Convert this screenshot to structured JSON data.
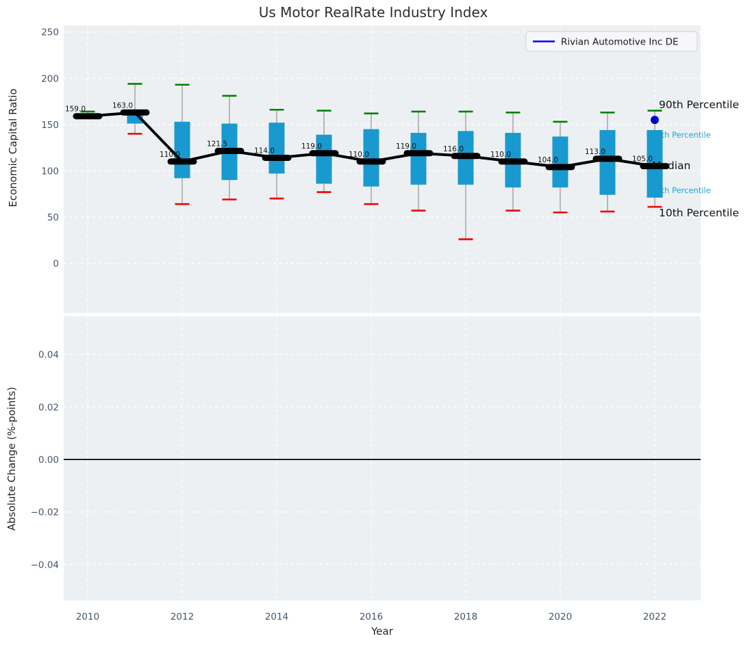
{
  "title": "Us Motor RealRate Industry Index",
  "xlabel": "Year",
  "top_panel": {
    "ylabel": "Economic Capital Ratio",
    "yticks": {
      "values": [
        250,
        200,
        150,
        100,
        50,
        0
      ],
      "labels": [
        "250",
        "200",
        "150",
        "100",
        "50",
        "0"
      ]
    },
    "legend": {
      "label": "Rivian Automotive Inc DE"
    },
    "annotations": {
      "p90": "90th Percentile",
      "p75": "75th Percentile",
      "median": "Median",
      "p25": "25th Percentile",
      "p10": "10th Percentile"
    }
  },
  "bottom_panel": {
    "ylabel": "Absolute Change (%-points)",
    "yticks": {
      "values": [
        0.04,
        0.02,
        0,
        -0.02,
        -0.04
      ],
      "labels": [
        "0.04",
        "0.02",
        "0.00",
        "−0.02",
        "−0.04"
      ]
    },
    "zero_line": 0.0
  },
  "xticks": {
    "values": [
      2010,
      2012,
      2014,
      2016,
      2018,
      2020,
      2022
    ],
    "labels": [
      "2010",
      "2012",
      "2014",
      "2016",
      "2018",
      "2020",
      "2022"
    ]
  },
  "colors": {
    "panel_bg": "#edf0f2",
    "grid": "#ffffff",
    "box": "#1899cf",
    "whisker": "#7f7f7f",
    "cap_high": "#008000",
    "cap_low": "#f20000",
    "median": "#000000",
    "rivian_line": "#0000ff",
    "rivian_dot": "#0000cc",
    "cyan_text": "#1da4d8",
    "zero_line": "#000000"
  },
  "chart_data": [
    {
      "type": "boxplot+line",
      "title": "Us Motor RealRate Industry Index",
      "xlabel": "Year",
      "ylabel": "Economic Capital Ratio",
      "ylim": [
        0,
        250
      ],
      "grid": true,
      "categories": [
        2010,
        2011,
        2012,
        2013,
        2014,
        2015,
        2016,
        2017,
        2018,
        2019,
        2020,
        2021,
        2022
      ],
      "series": [
        {
          "name": "90th percentile",
          "values": [
            164,
            194,
            193,
            181,
            166,
            165,
            162,
            164,
            164,
            163,
            153,
            163,
            165
          ]
        },
        {
          "name": "75th percentile",
          "values": [
            160,
            162,
            153,
            151,
            152,
            139,
            145,
            141,
            143,
            141,
            137,
            144,
            144
          ]
        },
        {
          "name": "median",
          "values": [
            159,
            163,
            110,
            121.5,
            114,
            119,
            110,
            119,
            116,
            110,
            104,
            113,
            105
          ]
        },
        {
          "name": "25th percentile",
          "values": [
            158,
            151,
            92,
            90,
            97,
            86,
            83,
            85,
            85,
            82,
            82,
            74,
            71
          ]
        },
        {
          "name": "10th percentile",
          "values": [
            157,
            140,
            64,
            69,
            70,
            77,
            64,
            57,
            26,
            57,
            55,
            56,
            61
          ]
        }
      ],
      "median_labels": [
        "159.0",
        "163.0",
        "110.0",
        "121.5",
        "114.0",
        "119.0",
        "110.0",
        "119.0",
        "116.0",
        "110.0",
        "104.0",
        "113.0",
        "105.0"
      ],
      "point": {
        "name": "Rivian Automotive Inc DE",
        "x": 2022,
        "y": 155
      },
      "legend_position": "upper right"
    },
    {
      "type": "line",
      "xlabel": "Year",
      "ylabel": "Absolute Change (%-points)",
      "ylim": [
        -0.054,
        0.0545
      ],
      "grid": true,
      "annotations": [
        {
          "type": "hline",
          "y": 0.0
        }
      ]
    }
  ]
}
